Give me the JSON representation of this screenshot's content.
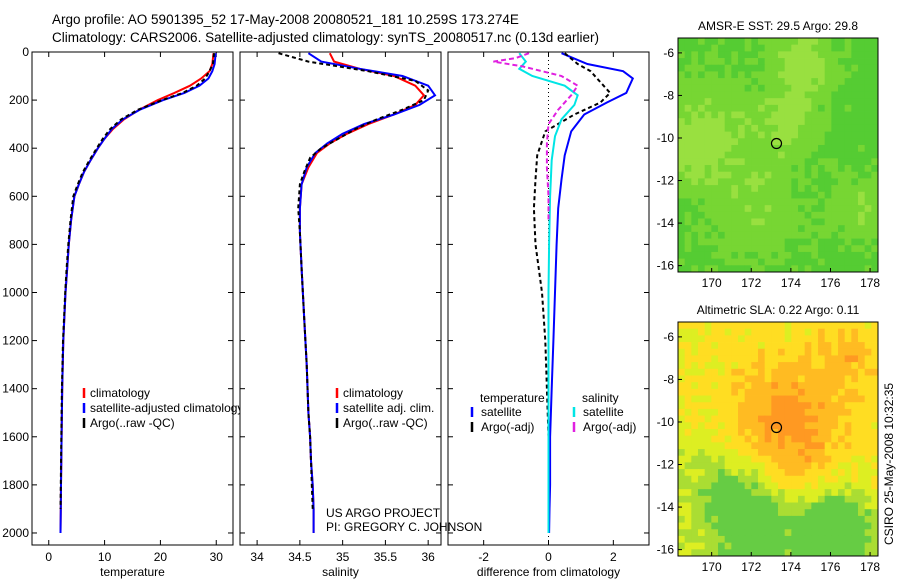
{
  "header": {
    "line1": "Argo profile: AO 5901395_52 17-May-2008 20080521_181 10.259S 173.274E",
    "line2": "Climatology: CARS2006. Satellite-adjusted climatology: synTS_20080517.nc (0.13d earlier)"
  },
  "side_label": "CSIRO 25-May-2008 10:32:35",
  "credit": {
    "line1": "US ARGO PROJECT",
    "line2": "PI: GREGORY C. JOHNSON"
  },
  "colors": {
    "climatology": "#ff0000",
    "satellite": "#0000ff",
    "argo": "#000000",
    "sat_cyan": "#00e5e5",
    "argo_magenta": "#e020e0"
  },
  "chart_data": [
    {
      "id": "temperature",
      "type": "line",
      "xlabel": "temperature",
      "ylabel": "",
      "xlim": [
        -3,
        33
      ],
      "ylim": [
        2050,
        0
      ],
      "xticks": [
        0,
        10,
        20,
        30
      ],
      "yticks": [
        0,
        200,
        400,
        600,
        800,
        1000,
        1200,
        1400,
        1600,
        1800,
        2000
      ],
      "legend": {
        "placement": "lower-right",
        "entries": [
          "climatology",
          "satellite-adjusted climatology",
          "Argo(..raw -QC)"
        ]
      },
      "series": [
        {
          "name": "climatology",
          "color": "#ff0000",
          "dash": "",
          "x": [
            29.5,
            29.3,
            28.8,
            27.3,
            25.3,
            22.5,
            19.5,
            16.2,
            13.5,
            11.5,
            10.0,
            8.8,
            7.5,
            6.3,
            5.4,
            4.6,
            4.0,
            3.6,
            3.3,
            3.0,
            2.8,
            2.6,
            2.4,
            2.3,
            2.2,
            2.15,
            2.1
          ],
          "y": [
            5,
            50,
            80,
            110,
            140,
            170,
            200,
            240,
            280,
            320,
            360,
            400,
            450,
            500,
            550,
            600,
            700,
            800,
            900,
            1000,
            1100,
            1200,
            1400,
            1600,
            1800,
            1900,
            2000
          ]
        },
        {
          "name": "satellite-adjusted climatology",
          "color": "#0000ff",
          "dash": "",
          "x": [
            29.9,
            29.7,
            29.3,
            28.6,
            27.0,
            24.3,
            20.5,
            16.3,
            13.3,
            11.3,
            10.0,
            8.8,
            7.5,
            6.3,
            5.4,
            4.6,
            4.0,
            3.6,
            3.3,
            3.0,
            2.8,
            2.6,
            2.4,
            2.3,
            2.2,
            2.15,
            2.1
          ],
          "y": [
            5,
            50,
            80,
            110,
            140,
            170,
            200,
            240,
            280,
            320,
            360,
            400,
            450,
            500,
            550,
            600,
            700,
            800,
            900,
            1000,
            1100,
            1200,
            1400,
            1600,
            1800,
            1900,
            2000
          ]
        },
        {
          "name": "Argo(..raw -QC)",
          "color": "#000000",
          "dash": "4,3",
          "x": [
            29.6,
            29.4,
            28.8,
            28.0,
            26.5,
            24.0,
            20.3,
            16.0,
            13.0,
            11.0,
            9.7,
            8.6,
            7.3,
            6.1,
            5.2,
            4.4,
            3.9,
            3.5,
            3.2,
            2.95,
            2.75,
            2.55,
            2.35,
            2.25,
            2.15,
            2.1
          ],
          "y": [
            5,
            50,
            80,
            110,
            140,
            170,
            200,
            240,
            280,
            320,
            360,
            400,
            450,
            500,
            550,
            600,
            700,
            800,
            900,
            1000,
            1100,
            1200,
            1400,
            1600,
            1800,
            1900
          ]
        }
      ]
    },
    {
      "id": "salinity",
      "type": "line",
      "xlabel": "salinity",
      "ylabel": "",
      "xlim": [
        33.8,
        36.15
      ],
      "ylim": [
        2050,
        0
      ],
      "xticks": [
        34,
        34.5,
        35,
        35.5,
        36
      ],
      "xticklabels": [
        "34",
        "34.5",
        "35",
        "35.5",
        "36"
      ],
      "yticks": [
        0,
        200,
        400,
        600,
        800,
        1000,
        1200,
        1400,
        1600,
        1800,
        2000
      ],
      "legend": {
        "placement": "lower-right",
        "entries": [
          "climatology",
          "satellite adj. clim.",
          "Argo(..raw -QC)"
        ]
      },
      "series": [
        {
          "name": "climatology",
          "color": "#ff0000",
          "dash": "",
          "x": [
            34.85,
            34.9,
            35.2,
            35.6,
            35.85,
            35.95,
            35.85,
            35.6,
            35.3,
            35.05,
            34.85,
            34.7,
            34.6,
            34.52,
            34.5,
            34.5,
            34.52,
            34.55,
            34.58,
            34.6,
            34.62,
            34.63,
            34.65,
            34.66,
            34.66
          ],
          "y": [
            5,
            40,
            70,
            100,
            140,
            180,
            220,
            260,
            300,
            340,
            380,
            420,
            480,
            550,
            650,
            750,
            900,
            1100,
            1300,
            1500,
            1600,
            1700,
            1800,
            1900,
            2000
          ]
        },
        {
          "name": "satellite adj. clim.",
          "color": "#0000ff",
          "dash": "",
          "x": [
            34.6,
            34.75,
            35.2,
            35.7,
            36.0,
            36.08,
            35.9,
            35.6,
            35.25,
            35.0,
            34.82,
            34.68,
            34.58,
            34.52,
            34.5,
            34.5,
            34.52,
            34.55,
            34.58,
            34.6,
            34.62,
            34.63,
            34.65,
            34.66,
            34.66
          ],
          "y": [
            5,
            40,
            70,
            100,
            140,
            180,
            220,
            260,
            300,
            340,
            380,
            420,
            480,
            550,
            650,
            750,
            900,
            1100,
            1300,
            1500,
            1600,
            1700,
            1800,
            1900,
            2000
          ]
        },
        {
          "name": "Argo(..raw -QC)",
          "color": "#000000",
          "dash": "4,3",
          "x": [
            34.25,
            34.6,
            35.3,
            35.85,
            36.0,
            35.95,
            35.7,
            35.4,
            35.15,
            34.95,
            34.75,
            34.62,
            34.55,
            34.5,
            34.48,
            34.5,
            34.52,
            34.55,
            34.58,
            34.6,
            34.62,
            34.63,
            34.64,
            34.65
          ],
          "y": [
            5,
            40,
            80,
            120,
            160,
            200,
            240,
            280,
            320,
            360,
            400,
            440,
            500,
            550,
            650,
            750,
            900,
            1100,
            1300,
            1500,
            1600,
            1700,
            1800,
            1900
          ]
        }
      ]
    },
    {
      "id": "difference",
      "type": "line",
      "xlabel": "difference from climatology",
      "ylabel": "",
      "xlim": [
        -3.1,
        3.1
      ],
      "ylim": [
        2050,
        0
      ],
      "xticks": [
        -2,
        0,
        2
      ],
      "yticks": [
        0,
        200,
        400,
        600,
        800,
        1000,
        1200,
        1400,
        1600,
        1800,
        2000
      ],
      "legend": {
        "placement": "lower",
        "headers": [
          "temperature",
          "salinity"
        ],
        "entries": [
          "satellite",
          "Argo(-adj)",
          "satellite",
          "Argo(-adj)"
        ]
      },
      "series": [
        {
          "name": "temperature satellite",
          "color": "#0000ff",
          "dash": "",
          "x": [
            0.4,
            1.2,
            2.3,
            2.6,
            2.5,
            2.4,
            1.8,
            1.1,
            0.7,
            0.5,
            0.4,
            0.3,
            0.25,
            0.2,
            0.15,
            0.1,
            0.05,
            0.05,
            0.03,
            0.02
          ],
          "y": [
            5,
            50,
            80,
            110,
            140,
            170,
            210,
            260,
            330,
            430,
            530,
            650,
            800,
            1000,
            1200,
            1400,
            1600,
            1800,
            1900,
            2000
          ]
        },
        {
          "name": "temperature Argo(-adj)",
          "color": "#000000",
          "dash": "4,3",
          "x": [
            0.5,
            0.9,
            1.3,
            1.5,
            1.7,
            1.9,
            1.6,
            0.8,
            -0.1,
            -0.35,
            -0.4,
            -0.45,
            -0.4,
            -0.2,
            -0.1,
            -0.05,
            0.0,
            0.0,
            0.0
          ],
          "y": [
            5,
            50,
            80,
            110,
            140,
            170,
            210,
            260,
            330,
            430,
            530,
            650,
            800,
            1000,
            1200,
            1400,
            1600,
            1800,
            1900
          ]
        },
        {
          "name": "salinity satellite",
          "color": "#00e5e5",
          "dash": "",
          "x": [
            -0.9,
            -0.7,
            -0.9,
            -0.5,
            0.5,
            0.9,
            0.8,
            0.4,
            0.2,
            0.1,
            0.05,
            0.02,
            0.0,
            0.0,
            0.0,
            0.0,
            0.0
          ],
          "y": [
            5,
            40,
            70,
            100,
            140,
            180,
            220,
            280,
            350,
            450,
            600,
            800,
            1000,
            1200,
            1400,
            1700,
            2000
          ]
        },
        {
          "name": "salinity Argo(-adj)",
          "color": "#e020e0",
          "dash": "5,3",
          "x": [
            -0.6,
            -1.0,
            -1.7,
            -0.8,
            0.4,
            0.9,
            0.7,
            0.3,
            0.0,
            -0.05,
            -0.05,
            0.0,
            0.0
          ],
          "y": [
            5,
            25,
            40,
            60,
            100,
            140,
            180,
            240,
            300,
            380,
            480,
            600,
            700
          ]
        }
      ]
    },
    {
      "id": "amsre-sst",
      "type": "heatmap",
      "title": "AMSR-E SST: 29.5 Argo: 29.8",
      "xlim": [
        168.3,
        178.4
      ],
      "ylim": [
        -16.3,
        -5.3
      ],
      "xticks": [
        170,
        172,
        174,
        176,
        178
      ],
      "yticks": [
        -6,
        -8,
        -10,
        -12,
        -14,
        -16
      ],
      "marker": {
        "x": 173.274,
        "y": -10.259
      },
      "palette": [
        "#22aa33",
        "#33bb33",
        "#55cc33",
        "#77d633",
        "#99e040"
      ],
      "seed": 7
    },
    {
      "id": "altimetric-sla",
      "type": "heatmap",
      "title": "Altimetric SLA: 0.22 Argo: 0.11",
      "xlim": [
        168.3,
        178.4
      ],
      "ylim": [
        -16.3,
        -5.3
      ],
      "xticks": [
        170,
        172,
        174,
        176,
        178
      ],
      "yticks": [
        -6,
        -8,
        -10,
        -12,
        -14,
        -16
      ],
      "marker": {
        "x": 173.274,
        "y": -10.259
      },
      "palette": [
        "#66cc44",
        "#aadd33",
        "#ddee22",
        "#ffdd22",
        "#ffbb22",
        "#ff9922"
      ],
      "seed": 3
    }
  ]
}
